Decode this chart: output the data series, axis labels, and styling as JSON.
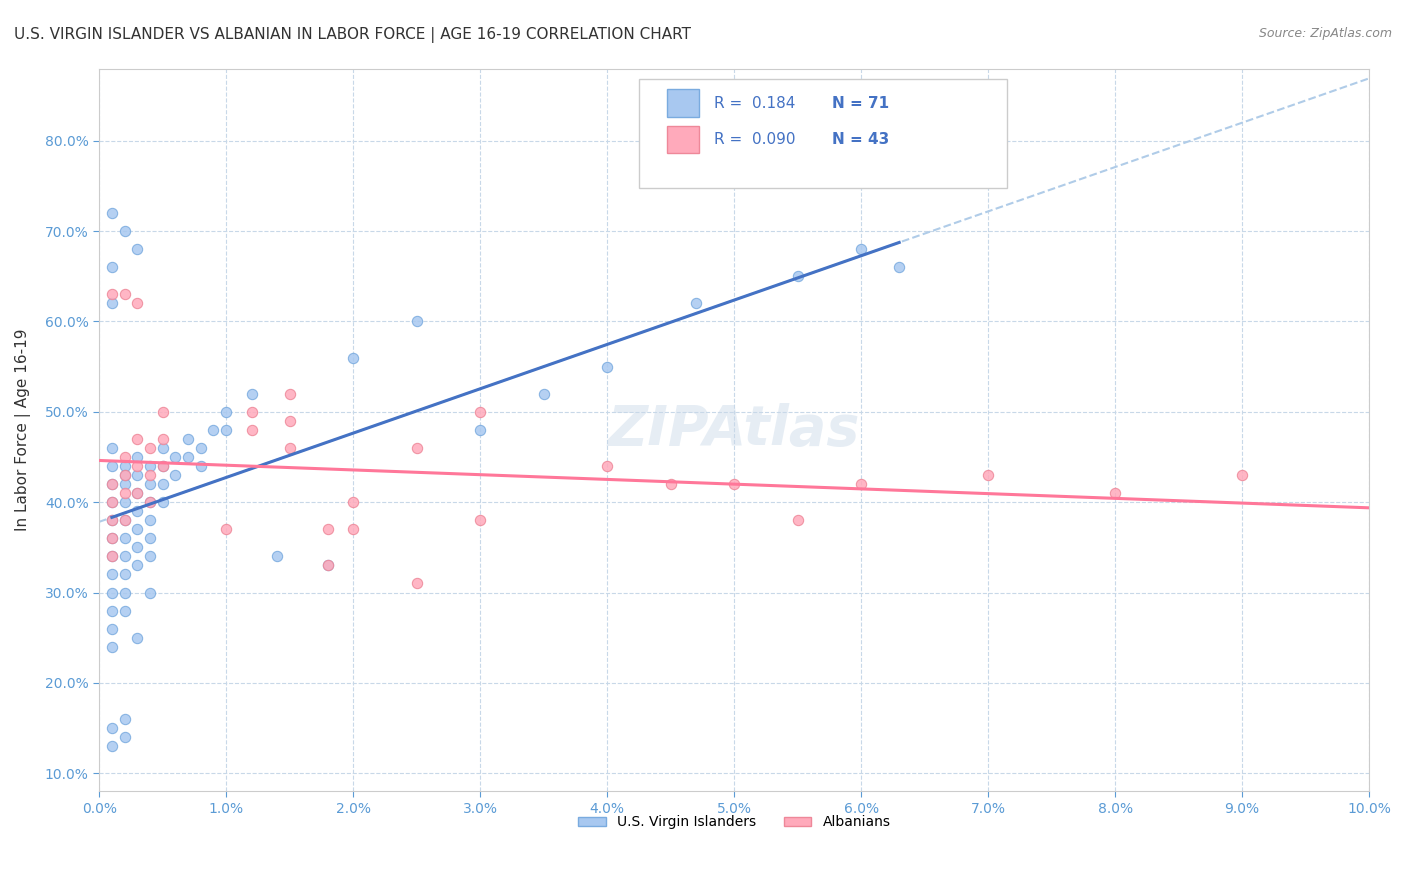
{
  "title": "U.S. VIRGIN ISLANDER VS ALBANIAN IN LABOR FORCE | AGE 16-19 CORRELATION CHART",
  "source": "Source: ZipAtlas.com",
  "ylabel": "In Labor Force | Age 16-19",
  "xlim": [
    0.0,
    0.1
  ],
  "ylim": [
    0.08,
    0.88
  ],
  "xticks": [
    0.0,
    0.01,
    0.02,
    0.03,
    0.04,
    0.05,
    0.06,
    0.07,
    0.08,
    0.09,
    0.1
  ],
  "xtick_labels": [
    "0.0%",
    "1.0%",
    "2.0%",
    "3.0%",
    "4.0%",
    "5.0%",
    "6.0%",
    "7.0%",
    "8.0%",
    "9.0%",
    "10.0%"
  ],
  "yticks": [
    0.1,
    0.2,
    0.3,
    0.4,
    0.5,
    0.6,
    0.7,
    0.8
  ],
  "ytick_labels": [
    "10.0%",
    "20.0%",
    "30.0%",
    "40.0%",
    "50.0%",
    "60.0%",
    "70.0%",
    "80.0%"
  ],
  "title_color": "#333333",
  "source_color": "#888888",
  "axis_label_color": "#333333",
  "tick_color_x": "#5b9bd5",
  "tick_color_y": "#5b9bd5",
  "background_color": "#ffffff",
  "grid_color": "#c8d8e8",
  "legend_R1": "0.184",
  "legend_N1": "71",
  "legend_R2": "0.090",
  "legend_N2": "43",
  "legend_label1": "U.S. Virgin Islanders",
  "legend_label2": "Albanians",
  "scatter1_color": "#a8c8f0",
  "scatter1_edgecolor": "#7aabdf",
  "scatter2_color": "#ffaabb",
  "scatter2_edgecolor": "#ee8899",
  "line1_color": "#4472c4",
  "line2_color": "#ff7799",
  "dashed_line_color": "#b0cce8",
  "watermark": "ZIPAtlas",
  "scatter1_x": [
    0.001,
    0.001,
    0.001,
    0.001,
    0.001,
    0.001,
    0.001,
    0.001,
    0.001,
    0.001,
    0.002,
    0.002,
    0.002,
    0.002,
    0.002,
    0.002,
    0.002,
    0.002,
    0.003,
    0.003,
    0.003,
    0.003,
    0.003,
    0.004,
    0.004,
    0.004,
    0.004,
    0.005,
    0.005,
    0.005,
    0.006,
    0.006,
    0.007,
    0.007,
    0.008,
    0.008,
    0.009,
    0.01,
    0.01,
    0.012,
    0.014,
    0.018,
    0.02,
    0.025,
    0.03,
    0.035,
    0.04,
    0.047,
    0.055,
    0.06,
    0.001,
    0.001,
    0.002,
    0.002,
    0.003,
    0.001,
    0.004,
    0.001,
    0.002,
    0.003,
    0.001,
    0.001,
    0.001,
    0.002,
    0.002,
    0.003,
    0.003,
    0.004,
    0.004,
    0.005,
    0.063
  ],
  "scatter1_y": [
    0.38,
    0.4,
    0.42,
    0.36,
    0.34,
    0.32,
    0.3,
    0.28,
    0.26,
    0.24,
    0.42,
    0.4,
    0.38,
    0.36,
    0.34,
    0.32,
    0.3,
    0.28,
    0.45,
    0.43,
    0.41,
    0.39,
    0.37,
    0.44,
    0.42,
    0.4,
    0.38,
    0.46,
    0.44,
    0.42,
    0.45,
    0.43,
    0.47,
    0.45,
    0.46,
    0.44,
    0.48,
    0.5,
    0.48,
    0.52,
    0.34,
    0.33,
    0.56,
    0.6,
    0.48,
    0.52,
    0.55,
    0.62,
    0.65,
    0.68,
    0.15,
    0.13,
    0.16,
    0.14,
    0.25,
    0.62,
    0.3,
    0.72,
    0.7,
    0.68,
    0.44,
    0.46,
    0.66,
    0.44,
    0.43,
    0.35,
    0.33,
    0.36,
    0.34,
    0.4,
    0.66
  ],
  "scatter2_x": [
    0.001,
    0.001,
    0.001,
    0.001,
    0.001,
    0.002,
    0.002,
    0.002,
    0.002,
    0.003,
    0.003,
    0.003,
    0.004,
    0.004,
    0.004,
    0.005,
    0.005,
    0.005,
    0.01,
    0.012,
    0.012,
    0.015,
    0.015,
    0.015,
    0.018,
    0.018,
    0.02,
    0.02,
    0.025,
    0.025,
    0.03,
    0.03,
    0.04,
    0.045,
    0.05,
    0.055,
    0.06,
    0.07,
    0.08,
    0.09,
    0.001,
    0.002,
    0.003
  ],
  "scatter2_y": [
    0.42,
    0.4,
    0.38,
    0.36,
    0.34,
    0.45,
    0.43,
    0.41,
    0.38,
    0.47,
    0.44,
    0.41,
    0.46,
    0.43,
    0.4,
    0.5,
    0.47,
    0.44,
    0.37,
    0.5,
    0.48,
    0.52,
    0.49,
    0.46,
    0.37,
    0.33,
    0.4,
    0.37,
    0.46,
    0.31,
    0.5,
    0.38,
    0.44,
    0.42,
    0.42,
    0.38,
    0.42,
    0.43,
    0.41,
    0.43,
    0.63,
    0.63,
    0.62
  ]
}
